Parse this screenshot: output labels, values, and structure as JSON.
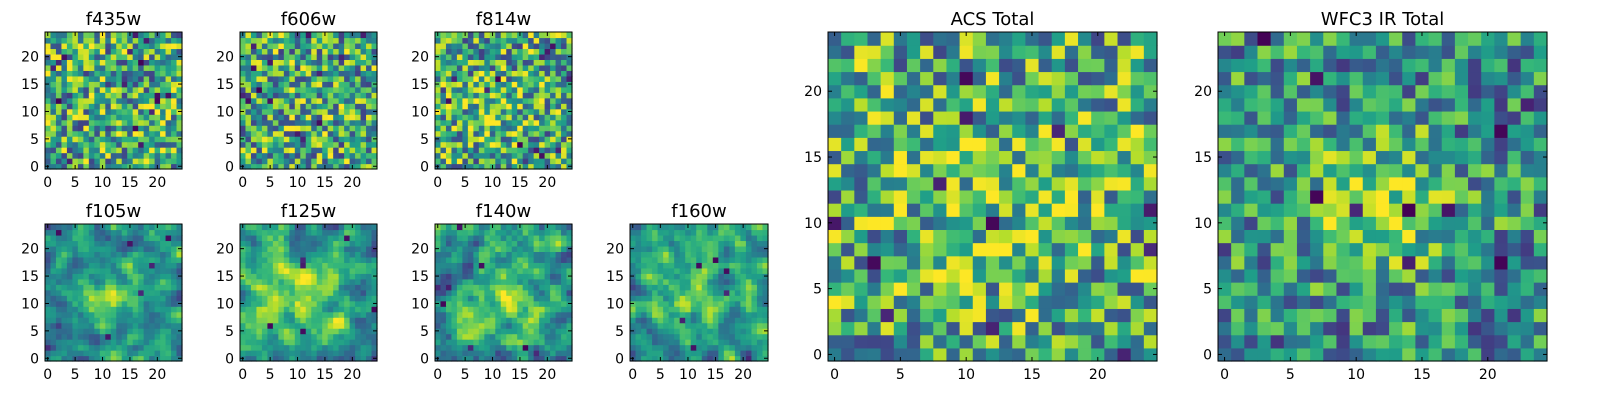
{
  "figure": {
    "colormap": "viridis",
    "pixel_grid": [
      25,
      25
    ]
  },
  "chart_data": [
    {
      "type": "heatmap",
      "title": "f435w",
      "x_range": [
        -0.5,
        24.5
      ],
      "y_range": [
        -0.5,
        24.5
      ],
      "x_ticks": [
        0,
        5,
        10,
        15,
        20
      ],
      "y_ticks": [
        0,
        5,
        10,
        15,
        20
      ],
      "seed": 11,
      "smooth": 0,
      "noise": 0.42,
      "base": 0.6,
      "peak": 0.1,
      "center": [
        20,
        7
      ],
      "sigma": 3.5,
      "dark_spots": 16
    },
    {
      "type": "heatmap",
      "title": "f606w",
      "x_range": [
        -0.5,
        24.5
      ],
      "y_range": [
        -0.5,
        24.5
      ],
      "x_ticks": [
        0,
        5,
        10,
        15,
        20
      ],
      "y_ticks": [
        0,
        5,
        10,
        15,
        20
      ],
      "seed": 23,
      "smooth": 0,
      "noise": 0.42,
      "base": 0.6,
      "peak": 0.05,
      "center": [
        12,
        12
      ],
      "sigma": 4,
      "dark_spots": 14
    },
    {
      "type": "heatmap",
      "title": "f814w",
      "x_range": [
        -0.5,
        24.5
      ],
      "y_range": [
        -0.5,
        24.5
      ],
      "x_ticks": [
        0,
        5,
        10,
        15,
        20
      ],
      "y_ticks": [
        0,
        5,
        10,
        15,
        20
      ],
      "seed": 37,
      "smooth": 0,
      "noise": 0.42,
      "base": 0.6,
      "peak": 0.15,
      "center": [
        10,
        10
      ],
      "sigma": 4,
      "dark_spots": 12
    },
    {
      "type": "heatmap",
      "title": "f105w",
      "x_range": [
        -0.5,
        24.5
      ],
      "y_range": [
        -0.5,
        24.5
      ],
      "x_ticks": [
        0,
        5,
        10,
        15,
        20
      ],
      "y_ticks": [
        0,
        5,
        10,
        15,
        20
      ],
      "seed": 41,
      "smooth": 1,
      "noise": 0.38,
      "base": 0.5,
      "peak": 0.35,
      "center": [
        12,
        11
      ],
      "sigma": 4,
      "dark_spots": 6
    },
    {
      "type": "heatmap",
      "title": "f125w",
      "x_range": [
        -0.5,
        24.5
      ],
      "y_range": [
        -0.5,
        24.5
      ],
      "x_ticks": [
        0,
        5,
        10,
        15,
        20
      ],
      "y_ticks": [
        0,
        5,
        10,
        15,
        20
      ],
      "seed": 53,
      "smooth": 1,
      "noise": 0.38,
      "base": 0.55,
      "peak": 0.25,
      "center": [
        11,
        12
      ],
      "sigma": 5,
      "dark_spots": 6
    },
    {
      "type": "heatmap",
      "title": "f140w",
      "x_range": [
        -0.5,
        24.5
      ],
      "y_range": [
        -0.5,
        24.5
      ],
      "x_ticks": [
        0,
        5,
        10,
        15,
        20
      ],
      "y_ticks": [
        0,
        5,
        10,
        15,
        20
      ],
      "seed": 67,
      "smooth": 1,
      "noise": 0.4,
      "base": 0.5,
      "peak": 0.25,
      "center": [
        12,
        11
      ],
      "sigma": 5,
      "dark_spots": 6
    },
    {
      "type": "heatmap",
      "title": "f160w",
      "x_range": [
        -0.5,
        24.5
      ],
      "y_range": [
        -0.5,
        24.5
      ],
      "x_ticks": [
        0,
        5,
        10,
        15,
        20
      ],
      "y_ticks": [
        0,
        5,
        10,
        15,
        20
      ],
      "seed": 79,
      "smooth": 1,
      "noise": 0.4,
      "base": 0.5,
      "peak": 0.25,
      "center": [
        10,
        12
      ],
      "sigma": 5,
      "dark_spots": 6
    },
    {
      "type": "heatmap",
      "title": "ACS Total",
      "x_range": [
        -0.5,
        24.5
      ],
      "y_range": [
        -0.5,
        24.5
      ],
      "x_ticks": [
        0,
        5,
        10,
        15,
        20
      ],
      "y_ticks": [
        0,
        5,
        10,
        15,
        20
      ],
      "seed": 97,
      "smooth": 0,
      "noise": 0.4,
      "base": 0.6,
      "peak": 0.12,
      "center": [
        12,
        12
      ],
      "sigma": 5,
      "dark_spots": 12
    },
    {
      "type": "heatmap",
      "title": "WFC3 IR Total",
      "x_range": [
        -0.5,
        24.5
      ],
      "y_range": [
        -0.5,
        24.5
      ],
      "x_ticks": [
        0,
        5,
        10,
        15,
        20
      ],
      "y_ticks": [
        0,
        5,
        10,
        15,
        20
      ],
      "seed": 131,
      "smooth": 0,
      "noise": 0.35,
      "base": 0.5,
      "peak": 0.4,
      "center": [
        12,
        11.5
      ],
      "sigma": 3.5,
      "dark_spots": 10
    }
  ]
}
